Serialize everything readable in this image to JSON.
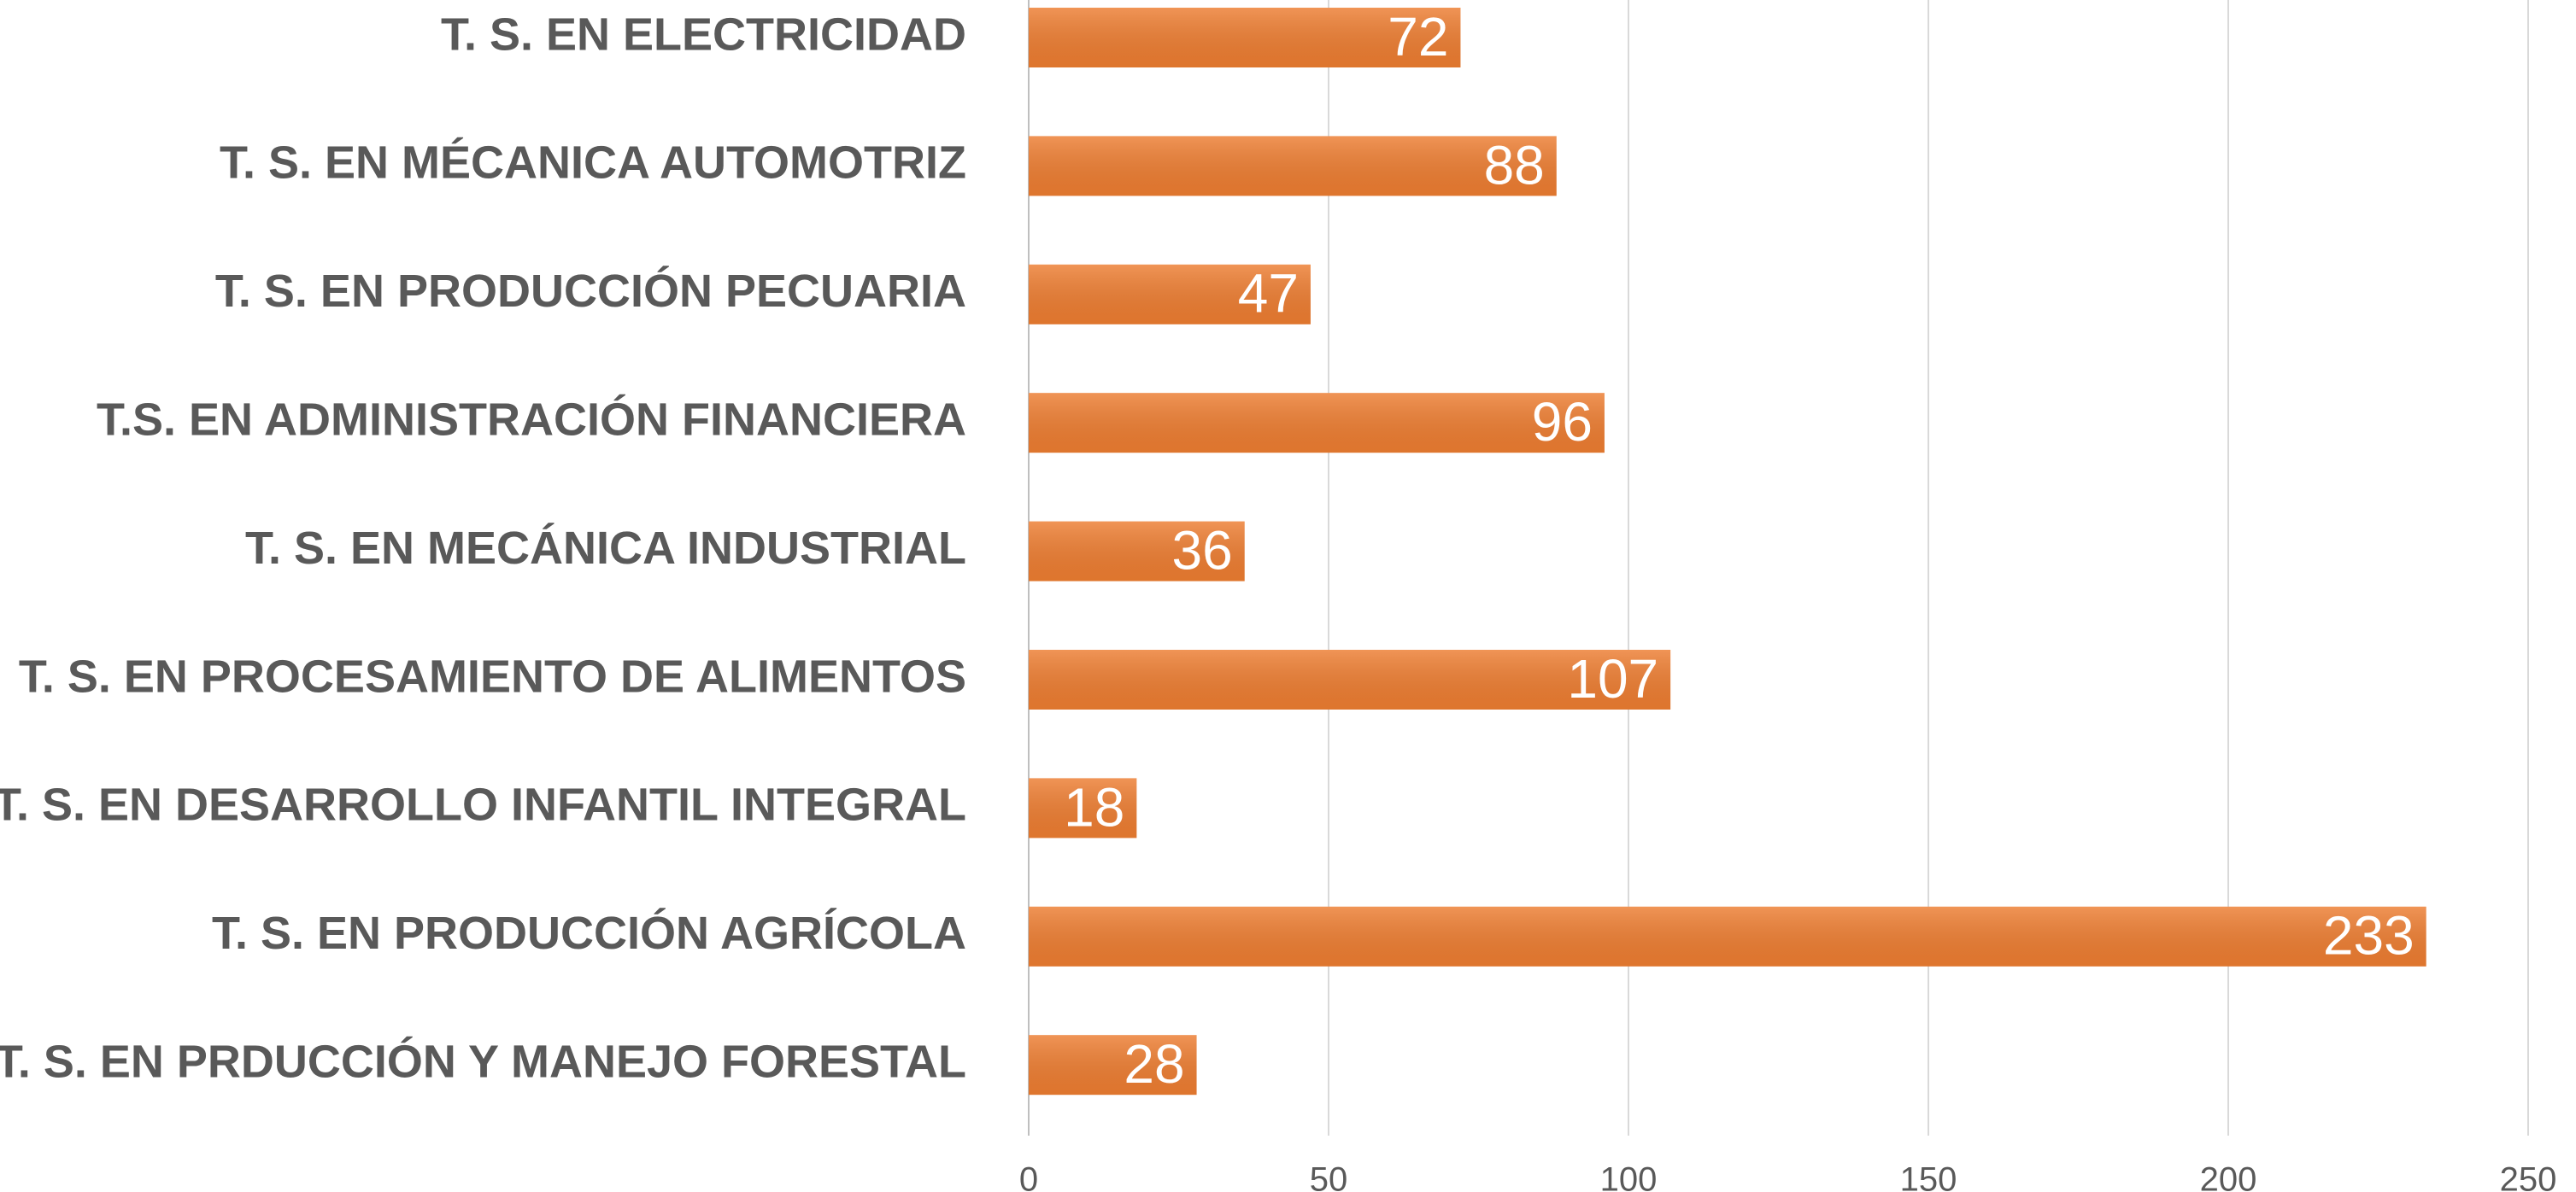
{
  "chart_data": {
    "type": "bar",
    "orientation": "horizontal",
    "categories": [
      "T. S. EN ELECTRICIDAD",
      "T. S. EN MÉCANICA AUTOMOTRIZ",
      "T. S. EN PRODUCCIÓN PECUARIA",
      "T.S. EN ADMINISTRACIÓN FINANCIERA",
      "T. S. EN MECÁNICA INDUSTRIAL",
      "T. S. EN PROCESAMIENTO DE ALIMENTOS",
      "T. S. EN DESARROLLO INFANTIL INTEGRAL",
      "T. S. EN PRODUCCIÓN AGRÍCOLA",
      "T. S. EN PRDUCCIÓN Y MANEJO FORESTAL"
    ],
    "values": [
      72,
      88,
      47,
      96,
      36,
      107,
      18,
      233,
      28
    ],
    "color": "#ed7d31",
    "xlim": [
      0,
      250
    ],
    "xticks": [
      0,
      50,
      100,
      150,
      200,
      250
    ],
    "grid": true
  }
}
